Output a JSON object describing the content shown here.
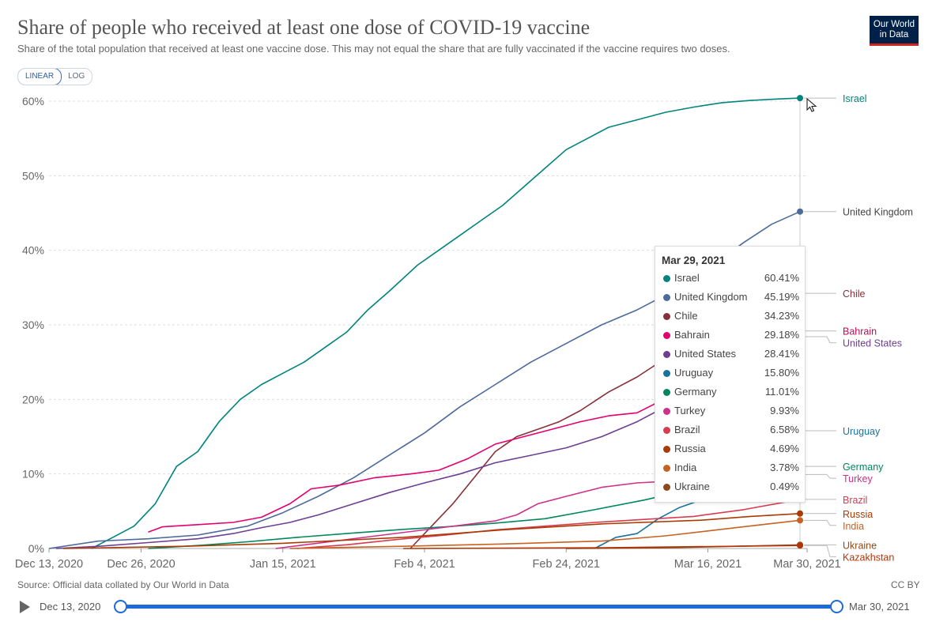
{
  "header": {
    "title": "Share of people who received at least one dose of COVID-19 vaccine",
    "subtitle": "Share of the total population that received at least one vaccine dose. This may not equal the share that are fully vaccinated if the vaccine requires two doses.",
    "logo_line1": "Our World",
    "logo_line2": "in Data"
  },
  "controls": {
    "linear_label": "LINEAR",
    "log_label": "LOG",
    "active_scale": "LINEAR"
  },
  "footer": {
    "source": "Source: Official data collated by Our World in Data",
    "license": "CC BY"
  },
  "timeline": {
    "start_label": "Dec 13, 2020",
    "end_label": "Mar 30, 2021"
  },
  "tooltip": {
    "date": "Mar 29, 2021",
    "rows": [
      {
        "name": "Israel",
        "value": "60.41%",
        "color": "#00847e"
      },
      {
        "name": "United Kingdom",
        "value": "45.19%",
        "color": "#4c6a9c"
      },
      {
        "name": "Chile",
        "value": "34.23%",
        "color": "#883039"
      },
      {
        "name": "Bahrain",
        "value": "29.18%",
        "color": "#e4006d"
      },
      {
        "name": "United States",
        "value": "28.41%",
        "color": "#6d3e91"
      },
      {
        "name": "Uruguay",
        "value": "15.80%",
        "color": "#18739d"
      },
      {
        "name": "Germany",
        "value": "11.01%",
        "color": "#00875e"
      },
      {
        "name": "Turkey",
        "value": "9.93%",
        "color": "#d02f8a"
      },
      {
        "name": "Brazil",
        "value": "6.58%",
        "color": "#d73c50"
      },
      {
        "name": "Russia",
        "value": "4.69%",
        "color": "#a93b03"
      },
      {
        "name": "India",
        "value": "3.78%",
        "color": "#c76221"
      },
      {
        "name": "Ukraine",
        "value": "0.49%",
        "color": "#8c4a18"
      }
    ]
  },
  "chart_data": {
    "type": "line",
    "title": "Share of people who received at least one dose of COVID-19 vaccine",
    "subtitle": "Share of the total population that received at least one vaccine dose. This may not equal the share that are fully vaccinated if the vaccine requires two doses.",
    "x_ticks": [
      "Dec 13, 2020",
      "Dec 26, 2020",
      "Jan 15, 2021",
      "Feb 4, 2021",
      "Feb 24, 2021",
      "Mar 16, 2021",
      "Mar 30, 2021"
    ],
    "y_ticks": [
      "0%",
      "10%",
      "20%",
      "30%",
      "40%",
      "50%",
      "60%"
    ],
    "ylim": [
      0,
      60
    ],
    "xlim": [
      "2020-12-13",
      "2021-03-30"
    ],
    "grid": "horizontal dashed",
    "legend": "line labels at right end",
    "series": [
      {
        "name": "Israel",
        "color": "#00847e",
        "points": [
          [
            "2020-12-19",
            0
          ],
          [
            "2020-12-22",
            1.5
          ],
          [
            "2020-12-25",
            3
          ],
          [
            "2020-12-28",
            6
          ],
          [
            "2020-12-31",
            11
          ],
          [
            "2021-01-03",
            13
          ],
          [
            "2021-01-06",
            17
          ],
          [
            "2021-01-09",
            20
          ],
          [
            "2021-01-12",
            22
          ],
          [
            "2021-01-15",
            23.5
          ],
          [
            "2021-01-18",
            25
          ],
          [
            "2021-01-21",
            27
          ],
          [
            "2021-01-24",
            29
          ],
          [
            "2021-01-27",
            32
          ],
          [
            "2021-01-30",
            34.5
          ],
          [
            "2021-02-03",
            38
          ],
          [
            "2021-02-06",
            40
          ],
          [
            "2021-02-09",
            42
          ],
          [
            "2021-02-12",
            44
          ],
          [
            "2021-02-15",
            46
          ],
          [
            "2021-02-18",
            48.5
          ],
          [
            "2021-02-21",
            51
          ],
          [
            "2021-02-24",
            53.5
          ],
          [
            "2021-02-27",
            55
          ],
          [
            "2021-03-02",
            56.5
          ],
          [
            "2021-03-06",
            57.5
          ],
          [
            "2021-03-10",
            58.5
          ],
          [
            "2021-03-14",
            59.2
          ],
          [
            "2021-03-18",
            59.8
          ],
          [
            "2021-03-22",
            60.1
          ],
          [
            "2021-03-26",
            60.3
          ],
          [
            "2021-03-29",
            60.41
          ]
        ]
      },
      {
        "name": "United Kingdom",
        "color": "#4c6a9c",
        "points": [
          [
            "2020-12-13",
            0
          ],
          [
            "2020-12-20",
            1
          ],
          [
            "2020-12-27",
            1.3
          ],
          [
            "2021-01-03",
            1.8
          ],
          [
            "2021-01-10",
            3
          ],
          [
            "2021-01-15",
            4.8
          ],
          [
            "2021-01-20",
            7
          ],
          [
            "2021-01-25",
            9.5
          ],
          [
            "2021-01-30",
            12.5
          ],
          [
            "2021-02-04",
            15.5
          ],
          [
            "2021-02-09",
            19
          ],
          [
            "2021-02-14",
            22
          ],
          [
            "2021-02-19",
            25
          ],
          [
            "2021-02-24",
            27.5
          ],
          [
            "2021-03-01",
            30
          ],
          [
            "2021-03-06",
            32
          ],
          [
            "2021-03-11",
            34.5
          ],
          [
            "2021-03-16",
            37.5
          ],
          [
            "2021-03-21",
            41
          ],
          [
            "2021-03-25",
            43.5
          ],
          [
            "2021-03-29",
            45.19
          ]
        ]
      },
      {
        "name": "Chile",
        "color": "#883039",
        "points": [
          [
            "2021-02-02",
            0
          ],
          [
            "2021-02-05",
            3
          ],
          [
            "2021-02-08",
            6
          ],
          [
            "2021-02-11",
            9.5
          ],
          [
            "2021-02-14",
            13
          ],
          [
            "2021-02-17",
            15
          ],
          [
            "2021-02-20",
            16
          ],
          [
            "2021-02-23",
            17
          ],
          [
            "2021-02-26",
            18.5
          ],
          [
            "2021-03-02",
            21
          ],
          [
            "2021-03-06",
            23
          ],
          [
            "2021-03-10",
            25.5
          ],
          [
            "2021-03-14",
            28
          ],
          [
            "2021-03-18",
            30
          ],
          [
            "2021-03-22",
            32
          ],
          [
            "2021-03-26",
            33.5
          ],
          [
            "2021-03-29",
            34.23
          ]
        ]
      },
      {
        "name": "Bahrain",
        "color": "#e4006d",
        "points": [
          [
            "2020-12-27",
            2.2
          ],
          [
            "2020-12-29",
            2.9
          ],
          [
            "2021-01-03",
            3.2
          ],
          [
            "2021-01-08",
            3.5
          ],
          [
            "2021-01-12",
            4.2
          ],
          [
            "2021-01-16",
            6
          ],
          [
            "2021-01-19",
            8
          ],
          [
            "2021-01-23",
            8.5
          ],
          [
            "2021-01-28",
            9.5
          ],
          [
            "2021-02-02",
            10
          ],
          [
            "2021-02-06",
            10.5
          ],
          [
            "2021-02-10",
            12
          ],
          [
            "2021-02-14",
            14
          ],
          [
            "2021-02-18",
            15
          ],
          [
            "2021-02-22",
            16
          ],
          [
            "2021-02-26",
            17
          ],
          [
            "2021-03-02",
            17.8
          ],
          [
            "2021-03-06",
            18.2
          ],
          [
            "2021-03-29",
            29.18
          ]
        ]
      },
      {
        "name": "United States",
        "color": "#6d3e91",
        "points": [
          [
            "2020-12-14",
            0
          ],
          [
            "2020-12-20",
            0.3
          ],
          [
            "2020-12-27",
            0.8
          ],
          [
            "2021-01-03",
            1.3
          ],
          [
            "2021-01-08",
            2
          ],
          [
            "2021-01-12",
            2.8
          ],
          [
            "2021-01-16",
            3.5
          ],
          [
            "2021-01-20",
            4.5
          ],
          [
            "2021-01-25",
            6
          ],
          [
            "2021-01-30",
            7.5
          ],
          [
            "2021-02-04",
            8.8
          ],
          [
            "2021-02-09",
            10
          ],
          [
            "2021-02-14",
            11.5
          ],
          [
            "2021-02-19",
            12.5
          ],
          [
            "2021-02-24",
            13.5
          ],
          [
            "2021-03-01",
            15
          ],
          [
            "2021-03-06",
            17
          ],
          [
            "2021-03-11",
            19.5
          ],
          [
            "2021-03-16",
            22
          ],
          [
            "2021-03-21",
            24.5
          ],
          [
            "2021-03-25",
            26.5
          ],
          [
            "2021-03-29",
            28.41
          ]
        ]
      },
      {
        "name": "Uruguay",
        "color": "#18739d",
        "points": [
          [
            "2021-02-28",
            0
          ],
          [
            "2021-03-03",
            1.5
          ],
          [
            "2021-03-06",
            2
          ],
          [
            "2021-03-09",
            4
          ],
          [
            "2021-03-12",
            5.5
          ],
          [
            "2021-03-15",
            6.5
          ],
          [
            "2021-03-18",
            7.5
          ],
          [
            "2021-03-21",
            9.5
          ],
          [
            "2021-03-24",
            12
          ],
          [
            "2021-03-27",
            14.5
          ],
          [
            "2021-03-29",
            15.8
          ]
        ]
      },
      {
        "name": "Germany",
        "color": "#00875e",
        "points": [
          [
            "2020-12-27",
            0
          ],
          [
            "2021-01-03",
            0.4
          ],
          [
            "2021-01-10",
            0.9
          ],
          [
            "2021-01-17",
            1.5
          ],
          [
            "2021-01-24",
            2
          ],
          [
            "2021-01-31",
            2.5
          ],
          [
            "2021-02-07",
            2.9
          ],
          [
            "2021-02-14",
            3.4
          ],
          [
            "2021-02-21",
            4
          ],
          [
            "2021-02-28",
            5.2
          ],
          [
            "2021-03-07",
            6.5
          ],
          [
            "2021-03-14",
            8
          ],
          [
            "2021-03-21",
            9.5
          ],
          [
            "2021-03-29",
            11.01
          ]
        ]
      },
      {
        "name": "Turkey",
        "color": "#d02f8a",
        "points": [
          [
            "2021-01-14",
            0
          ],
          [
            "2021-02-14",
            3.7
          ],
          [
            "2021-02-17",
            4.5
          ],
          [
            "2021-02-20",
            6
          ],
          [
            "2021-02-24",
            7
          ],
          [
            "2021-03-01",
            8.2
          ],
          [
            "2021-03-06",
            8.8
          ],
          [
            "2021-03-12",
            9.1
          ],
          [
            "2021-03-18",
            9.5
          ],
          [
            "2021-03-24",
            9.8
          ],
          [
            "2021-03-29",
            9.93
          ]
        ]
      },
      {
        "name": "Brazil",
        "color": "#d73c50",
        "points": [
          [
            "2021-01-17",
            0
          ],
          [
            "2021-01-24",
            0.5
          ],
          [
            "2021-01-31",
            1.2
          ],
          [
            "2021-02-07",
            1.8
          ],
          [
            "2021-02-14",
            2.5
          ],
          [
            "2021-02-21",
            3
          ],
          [
            "2021-02-28",
            3.5
          ],
          [
            "2021-03-07",
            3.9
          ],
          [
            "2021-03-14",
            4.3
          ],
          [
            "2021-03-21",
            5.2
          ],
          [
            "2021-03-29",
            6.58
          ]
        ]
      },
      {
        "name": "Russia",
        "color": "#a93b03",
        "points": [
          [
            "2020-12-15",
            0
          ],
          [
            "2021-01-01",
            0.3
          ],
          [
            "2021-01-15",
            0.7
          ],
          [
            "2021-02-01",
            1.5
          ],
          [
            "2021-02-15",
            2.5
          ],
          [
            "2021-03-01",
            3.3
          ],
          [
            "2021-03-15",
            3.8
          ],
          [
            "2021-03-22",
            4.3
          ],
          [
            "2021-03-29",
            4.69
          ]
        ]
      },
      {
        "name": "India",
        "color": "#c76221",
        "points": [
          [
            "2021-01-16",
            0
          ],
          [
            "2021-02-01",
            0.3
          ],
          [
            "2021-02-15",
            0.6
          ],
          [
            "2021-03-01",
            1
          ],
          [
            "2021-03-10",
            1.7
          ],
          [
            "2021-03-20",
            2.8
          ],
          [
            "2021-03-29",
            3.78
          ]
        ]
      },
      {
        "name": "Ukraine",
        "color": "#8c4a18",
        "points": [
          [
            "2021-02-24",
            0
          ],
          [
            "2021-03-10",
            0.1
          ],
          [
            "2021-03-20",
            0.3
          ],
          [
            "2021-03-29",
            0.49
          ]
        ]
      },
      {
        "name": "Kazakhstan",
        "color": "#b13507",
        "points": [
          [
            "2021-02-01",
            0
          ],
          [
            "2021-03-01",
            0.1
          ],
          [
            "2021-03-29",
            0.4
          ]
        ]
      }
    ],
    "line_labels": [
      {
        "name": "Israel",
        "color": "#00847e"
      },
      {
        "name": "United Kingdom",
        "color": "#444444"
      },
      {
        "name": "Chile",
        "color": "#883039"
      },
      {
        "name": "Bahrain",
        "color": "#c00a55"
      },
      {
        "name": "United States",
        "color": "#6d3e91"
      },
      {
        "name": "Uruguay",
        "color": "#18739d"
      },
      {
        "name": "Germany",
        "color": "#00875e"
      },
      {
        "name": "Turkey",
        "color": "#d02f8a"
      },
      {
        "name": "Brazil",
        "color": "#d73c50"
      },
      {
        "name": "Russia",
        "color": "#a93b03"
      },
      {
        "name": "India",
        "color": "#c76221"
      },
      {
        "name": "Ukraine",
        "color": "#8c4a18"
      },
      {
        "name": "Kazakhstan",
        "color": "#b13507"
      }
    ]
  }
}
